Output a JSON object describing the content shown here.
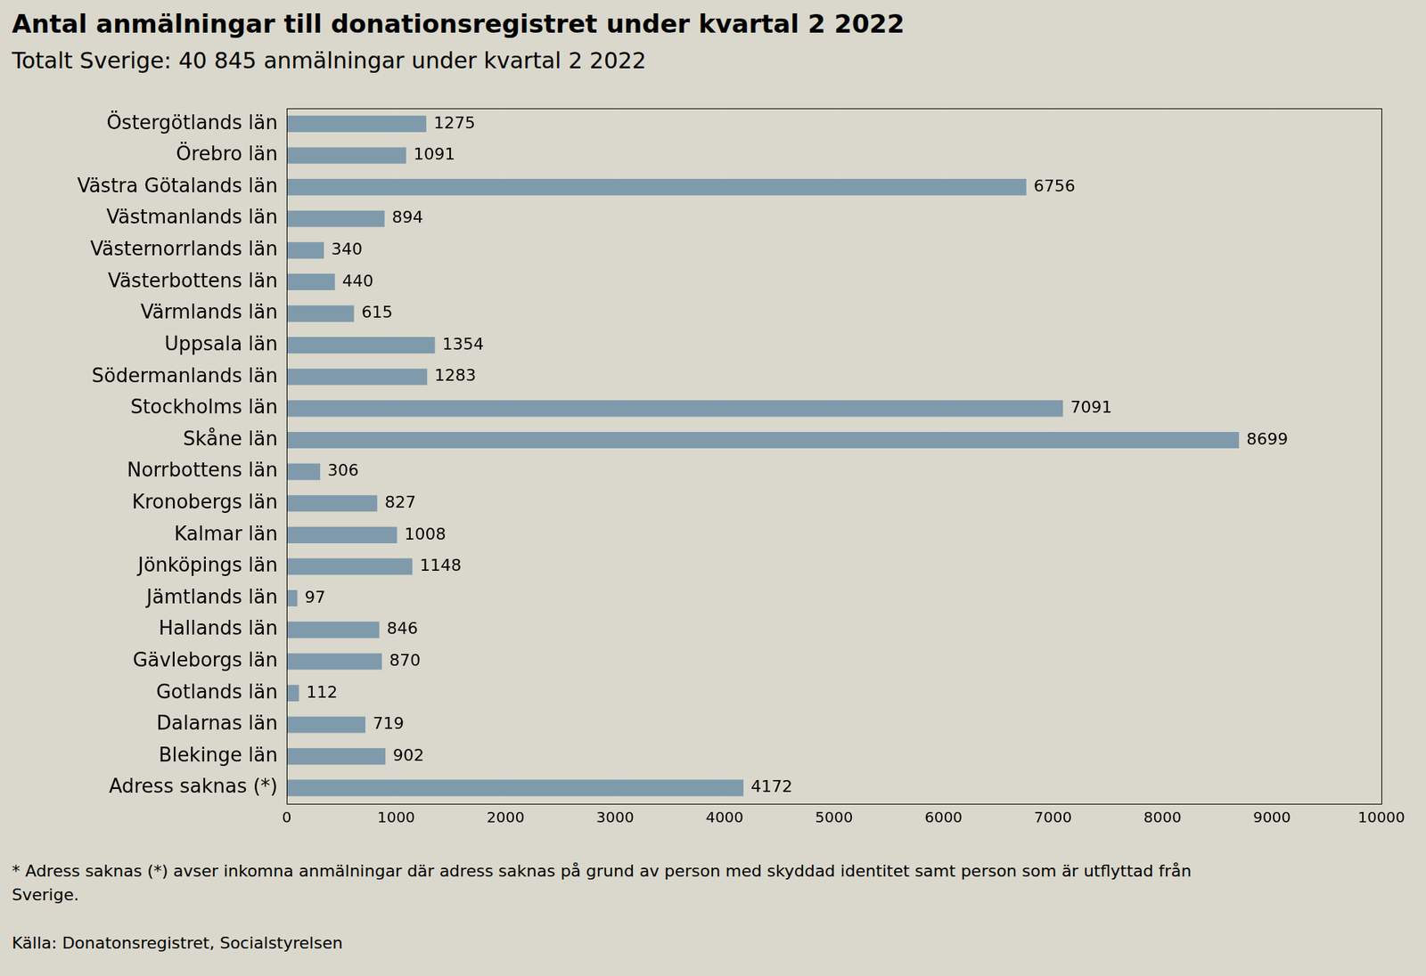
{
  "chart_data": {
    "type": "bar",
    "orientation": "horizontal",
    "title": "Antal anmälningar till donationsregistret under kvartal 2 2022",
    "subtitle": "Totalt Sverige: 40 845 anmälningar under kvartal 2 2022",
    "categories": [
      "Östergötlands län",
      "Örebro län",
      "Västra Götalands län",
      "Västmanlands län",
      "Västernorrlands län",
      "Västerbottens län",
      "Värmlands län",
      "Uppsala län",
      "Södermanlands län",
      "Stockholms län",
      "Skåne län",
      "Norrbottens län",
      "Kronobergs län",
      "Kalmar län",
      "Jönköpings län",
      "Jämtlands län",
      "Hallands län",
      "Gävleborgs län",
      "Gotlands län",
      "Dalarnas län",
      "Blekinge län",
      "Adress saknas (*)"
    ],
    "values": [
      1275,
      1091,
      6756,
      894,
      340,
      440,
      615,
      1354,
      1283,
      7091,
      8699,
      306,
      827,
      1008,
      1148,
      97,
      846,
      870,
      112,
      719,
      902,
      4172
    ],
    "color": "#7f9aab",
    "xlim": [
      0,
      10000
    ],
    "xticks": [
      0,
      1000,
      2000,
      3000,
      4000,
      5000,
      6000,
      7000,
      8000,
      9000,
      10000
    ],
    "grid": true,
    "data_labels": true,
    "footnote": "* Adress saknas (*) avser inkomna anmälningar där adress saknas på grund av person med skyddad identitet samt person som är utflyttad från Sverige.",
    "source": "Källa: Donatonsregistret, Socialstyrelsen"
  }
}
